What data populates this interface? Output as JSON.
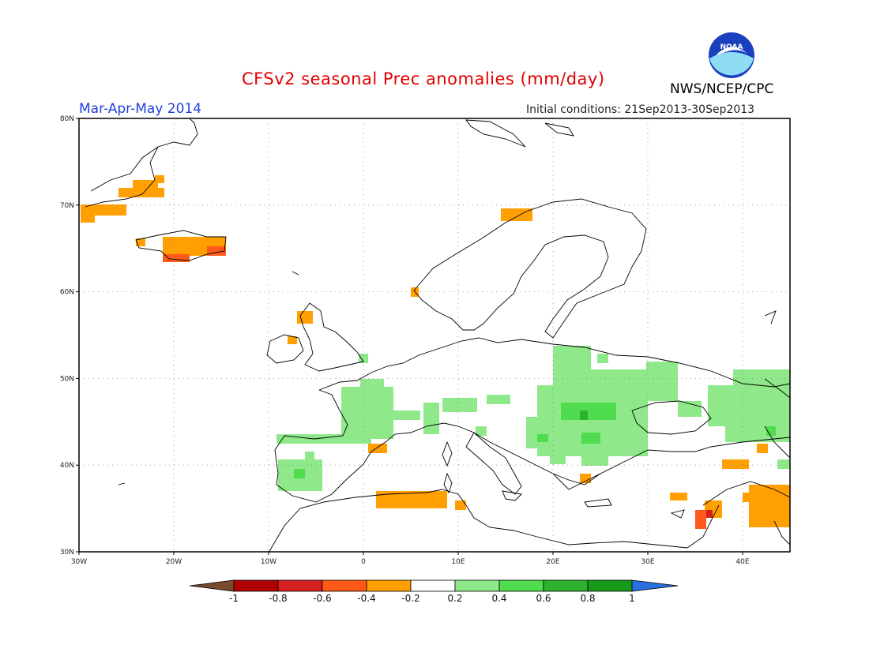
{
  "header": {
    "title": "CFSv2 seasonal Prec anomalies (mm/day)",
    "period": "Mar-Apr-May 2014",
    "initial_conditions": "Initial conditions: 21Sep2013-30Sep2013",
    "agency": "NWS/NCEP/CPC",
    "logo_text": "NOAA"
  },
  "map": {
    "lon_range": [
      -30,
      45
    ],
    "lat_range": [
      30,
      80
    ],
    "lat_labels": [
      "30N",
      "40N",
      "50N",
      "60N",
      "70N",
      "80N"
    ],
    "lon_labels": [
      "30W",
      "20W",
      "10W",
      "0",
      "10E",
      "20E",
      "30E",
      "40E"
    ],
    "gridlines": "dotted"
  },
  "colorbar": {
    "labels": [
      "-1",
      "-0.8",
      "-0.6",
      "-0.4",
      "-0.2",
      "0.2",
      "0.4",
      "0.6",
      "0.8",
      "1"
    ],
    "colors": [
      "#7a4a2c",
      "#b00000",
      "#d61f1f",
      "#ff5a1a",
      "#ff9f00",
      "#ffffff",
      "#8fe88a",
      "#4fdc4f",
      "#2db22d",
      "#1a9a1a",
      "#2a6fe0"
    ]
  }
}
